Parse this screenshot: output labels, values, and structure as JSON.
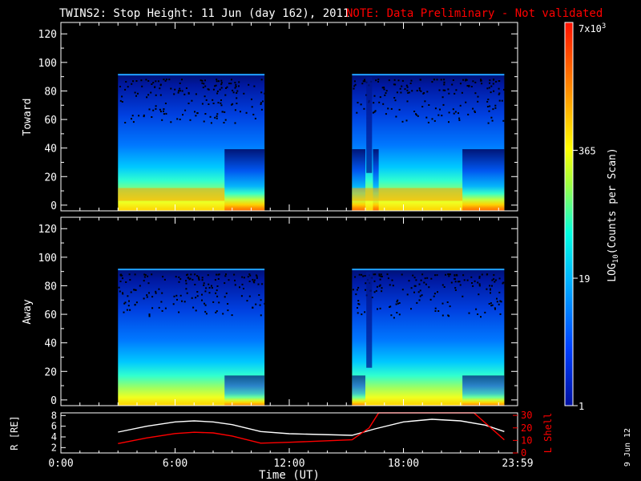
{
  "header": {
    "title": "TWINS2: Stop Height: 11 Jun (day 162), 2011",
    "note": "NOTE: Data Preliminary - Not validated",
    "note_color": "#ff0000"
  },
  "footer": {
    "date_stamp": "9 Jun 12"
  },
  "chart_data": [
    {
      "type": "heatmap",
      "panel": "Toward",
      "ylabel": "Toward",
      "x_range_hours": [
        0,
        24
      ],
      "ylim": [
        -4,
        128
      ],
      "y_ticks": [
        "0",
        "20",
        "40",
        "60",
        "80",
        "100",
        "120"
      ],
      "y_tick_values": [
        0,
        20,
        40,
        60,
        80,
        100,
        120
      ],
      "data_intervals_hours": [
        [
          3.0,
          10.7
        ],
        [
          15.3,
          23.3
        ]
      ],
      "y_max_data": 92
    },
    {
      "type": "heatmap",
      "panel": "Away",
      "ylabel": "Away",
      "x_range_hours": [
        0,
        24
      ],
      "ylim": [
        -4,
        128
      ],
      "y_ticks": [
        "0",
        "20",
        "40",
        "60",
        "80",
        "100",
        "120"
      ],
      "y_tick_values": [
        0,
        20,
        40,
        60,
        80,
        100,
        120
      ],
      "data_intervals_hours": [
        [
          3.0,
          10.7
        ],
        [
          15.3,
          23.3
        ]
      ],
      "y_max_data": 92
    },
    {
      "type": "line",
      "panel": "orbit",
      "ylabel_left": "R [RE]",
      "ylabel_right": "L Shell",
      "y_left_ticks": [
        "2",
        "4",
        "6",
        "8"
      ],
      "y_left_tick_values": [
        2,
        4,
        6,
        8
      ],
      "y_left_lim": [
        1,
        8.5
      ],
      "y_right_ticks": [
        "0",
        "10",
        "20",
        "30"
      ],
      "y_right_tick_values": [
        0,
        10,
        20,
        30
      ],
      "y_right_lim": [
        0,
        32
      ],
      "series": [
        {
          "name": "R",
          "color": "#ffffff",
          "x": [
            3.0,
            4.5,
            6.0,
            7.0,
            8.0,
            9.0,
            10.5,
            12.0,
            15.3,
            16.5,
            18.0,
            19.5,
            21.0,
            22.3,
            23.3
          ],
          "y": [
            4.9,
            6.0,
            6.8,
            7.0,
            6.8,
            6.3,
            5.0,
            4.6,
            4.3,
            5.5,
            6.8,
            7.3,
            7.0,
            6.2,
            5.0
          ]
        },
        {
          "name": "L Shell",
          "color": "#ff0000",
          "x": [
            3.0,
            4.5,
            6.0,
            7.0,
            8.0,
            9.0,
            10.5,
            12.0,
            15.3,
            16.2,
            16.7,
            21.7,
            22.3,
            23.3
          ],
          "y": [
            7.5,
            12,
            15.5,
            16.5,
            16.0,
            13.5,
            7.8,
            8.5,
            10.5,
            20,
            32,
            32,
            24,
            10.5
          ]
        }
      ]
    }
  ],
  "x_axis": {
    "label": "Time (UT)",
    "tick_labels": [
      "0:00",
      "6:00",
      "12:00",
      "18:00",
      "23:59"
    ],
    "tick_values_hours": [
      0,
      6,
      12,
      18,
      24
    ]
  },
  "colorbar": {
    "label": "LOG10(Counts per Scan)",
    "label_prefix": "LOG",
    "label_sub": "10",
    "label_suffix": "(Counts per Scan)",
    "top_label": "7x10",
    "top_label_sup": "3",
    "tick_labels": [
      "365",
      "19",
      "1"
    ],
    "tick_values": [
      365,
      19,
      1
    ],
    "vmin": 1,
    "vmax": 7000,
    "scale": "log"
  }
}
